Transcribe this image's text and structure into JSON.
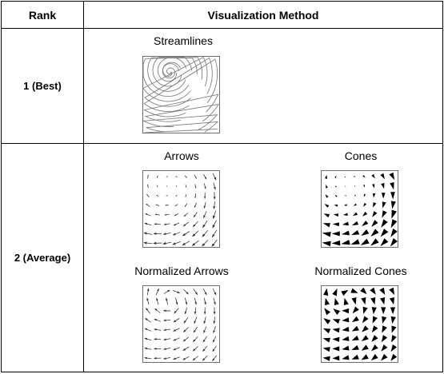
{
  "table": {
    "headers": [
      "Rank",
      "Visualization Method"
    ],
    "rows": [
      {
        "rank": "1 (Best)",
        "methods": [
          {
            "caption": "Streamlines",
            "icon": "streamlines-plot"
          }
        ]
      },
      {
        "rank": "2 (Average)",
        "methods": [
          {
            "caption": "Arrows",
            "icon": "arrows-plot"
          },
          {
            "caption": "Cones",
            "icon": "cones-plot"
          },
          {
            "caption": "Normalized Arrows",
            "icon": "normalized-arrows-plot"
          },
          {
            "caption": "Normalized Cones",
            "icon": "normalized-cones-plot"
          }
        ]
      }
    ]
  }
}
